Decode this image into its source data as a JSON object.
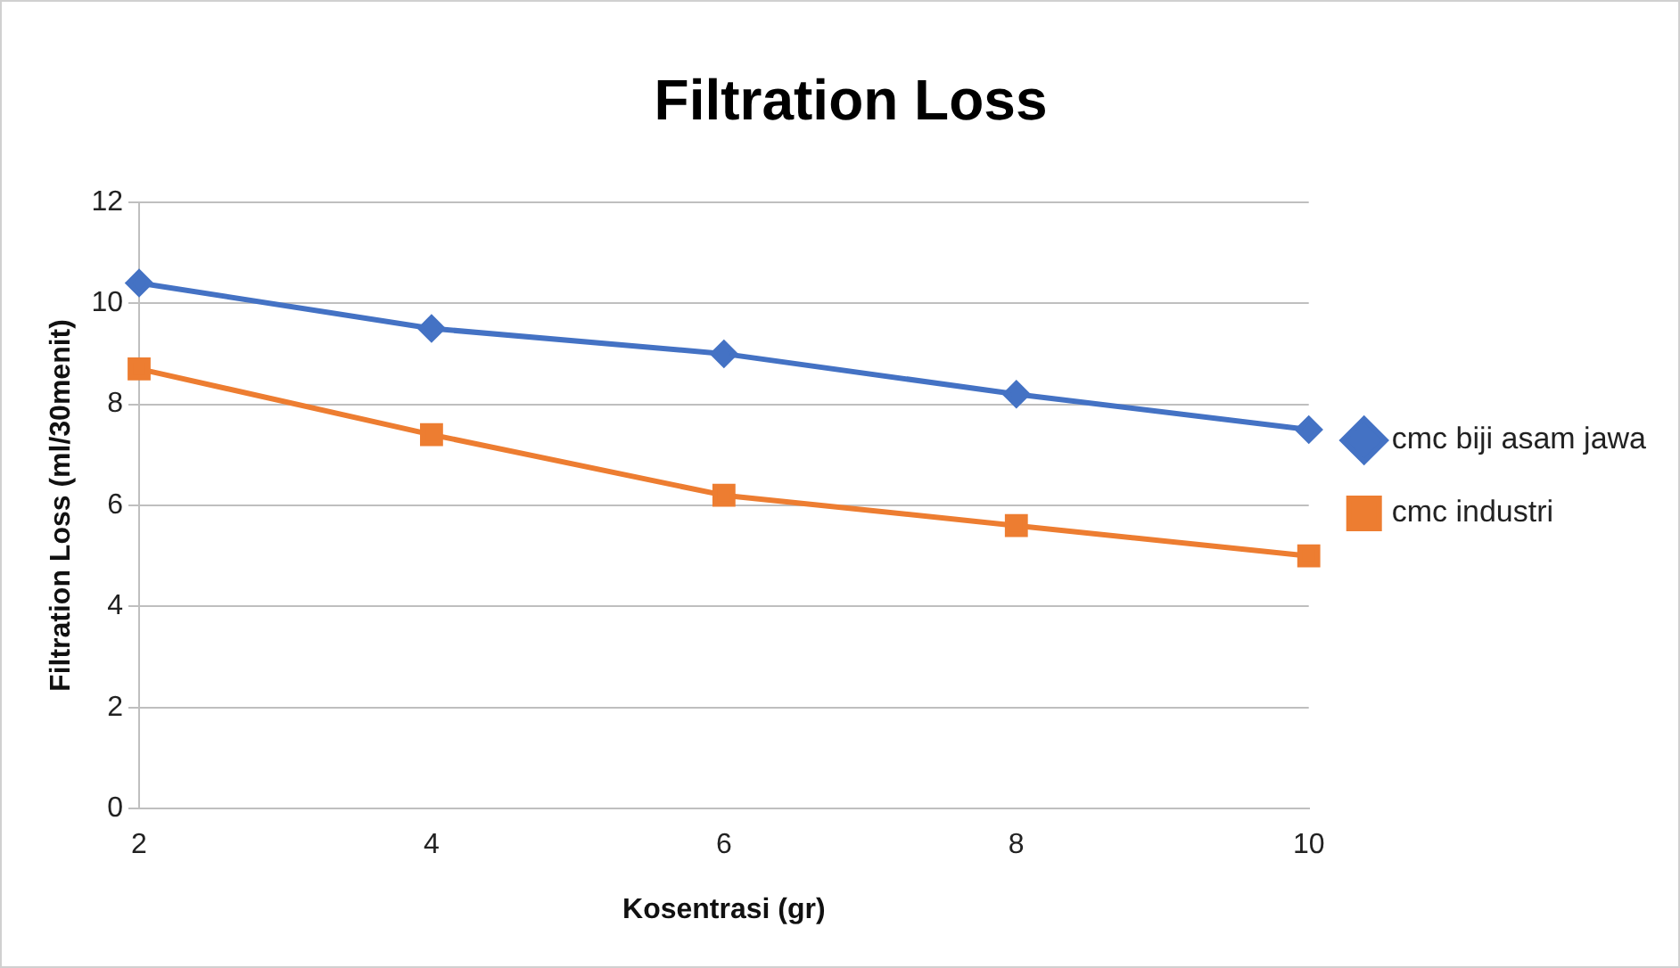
{
  "chart_data": {
    "type": "line",
    "title": "Filtration Loss",
    "xlabel": "Kosentrasi (gr)",
    "ylabel": "Filtration Loss (ml/30menit)",
    "categories": [
      "2",
      "4",
      "6",
      "8",
      "10"
    ],
    "series": [
      {
        "name": "cmc biji asam jawa",
        "color": "#4472c4",
        "marker": "diamond",
        "values": [
          10.4,
          9.5,
          9.0,
          8.2,
          7.5
        ]
      },
      {
        "name": "cmc industri",
        "color": "#ed7d31",
        "marker": "square",
        "values": [
          8.7,
          7.4,
          6.2,
          5.6,
          5.0
        ]
      }
    ],
    "ylim": [
      0,
      12
    ],
    "yticks": [
      0,
      2,
      4,
      6,
      8,
      10,
      12
    ],
    "grid": "y",
    "legend": "right",
    "line_style": "solid"
  }
}
